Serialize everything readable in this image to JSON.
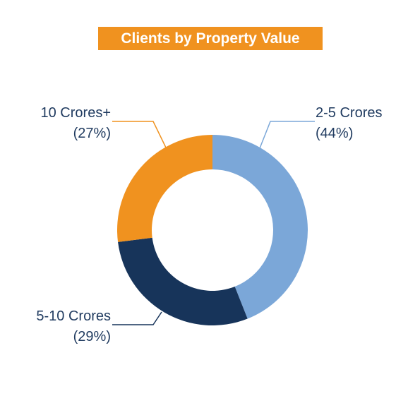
{
  "colors": {
    "title_bg": "#F0921F",
    "label_text": "#1F3A5F",
    "leader_line_blue": "#7BA7D8",
    "leader_line_orange": "#F0921F",
    "leader_line_navy": "#17345A"
  },
  "chart_data": {
    "type": "donut",
    "title": "Clients by Property Value",
    "slices": [
      {
        "label": "2-5 Crores",
        "value": 44,
        "percent_label": "(44%)",
        "color": "#7BA7D8"
      },
      {
        "label": "5-10 Crores",
        "value": 29,
        "percent_label": "(29%)",
        "color": "#17345A"
      },
      {
        "label": "10 Crores+",
        "value": 27,
        "percent_label": "(27%)",
        "color": "#F0921F"
      }
    ],
    "legend": "none"
  }
}
